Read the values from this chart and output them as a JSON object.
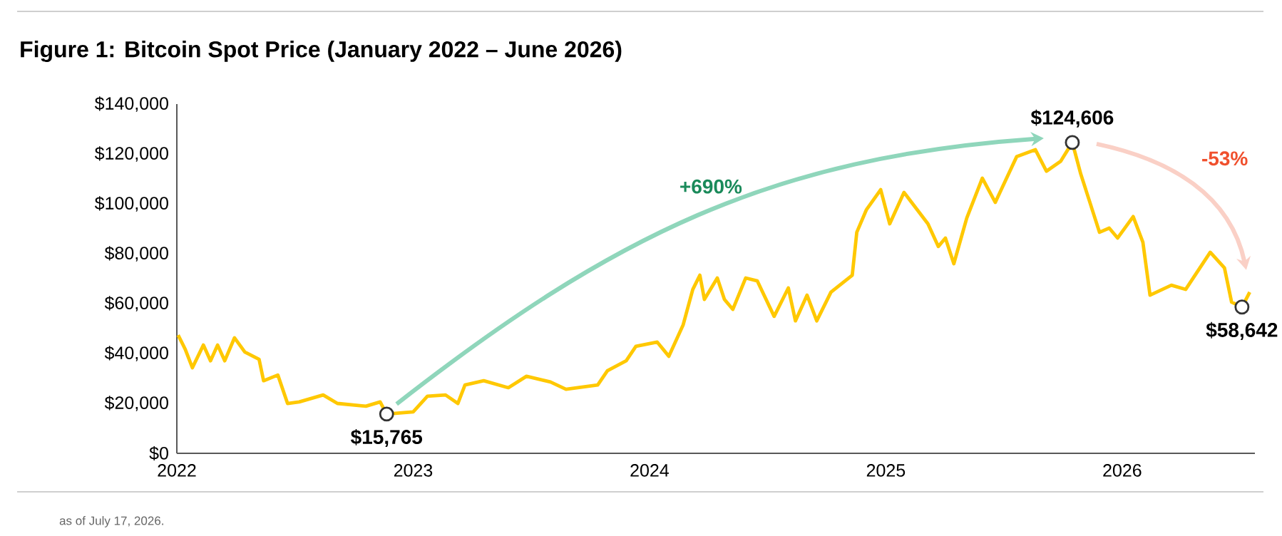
{
  "chart_data": {
    "type": "line",
    "title": "Figure 1: Bitcoin Spot Price (January 2022 – June 2026)",
    "color": "#ffc800",
    "x": [
      "2022-01-03",
      "2022-01-14",
      "2022-01-25",
      "2022-02-11",
      "2022-02-22",
      "2022-03-05",
      "2022-03-16",
      "2022-03-31",
      "2022-04-16",
      "2022-05-08",
      "2022-05-15",
      "2022-06-06",
      "2022-06-21",
      "2022-07-09",
      "2022-08-15",
      "2022-09-06",
      "2022-10-20",
      "2022-11-11",
      "2022-11-21",
      "2023-01-01",
      "2023-01-23",
      "2023-02-20",
      "2023-03-11",
      "2023-03-22",
      "2023-04-20",
      "2023-05-28",
      "2023-06-25",
      "2023-08-01",
      "2023-08-25",
      "2023-10-13",
      "2023-10-28",
      "2023-11-26",
      "2023-12-11",
      "2024-01-13",
      "2024-01-31",
      "2024-02-22",
      "2024-03-08",
      "2024-03-19",
      "2024-03-26",
      "2024-04-15",
      "2024-04-26",
      "2024-05-09",
      "2024-05-29",
      "2024-06-16",
      "2024-07-12",
      "2024-08-03",
      "2024-08-14",
      "2024-09-01",
      "2024-09-16",
      "2024-10-08",
      "2024-11-10",
      "2024-11-17",
      "2024-12-02",
      "2024-12-24",
      "2025-01-07",
      "2025-01-29",
      "2025-03-07",
      "2025-03-23",
      "2025-04-03",
      "2025-04-16",
      "2025-05-06",
      "2025-05-30",
      "2025-06-19",
      "2025-07-22",
      "2025-08-20",
      "2025-09-06",
      "2025-09-28",
      "2025-10-16",
      "2025-10-29",
      "2025-11-27",
      "2025-12-12",
      "2025-12-25",
      "2026-01-18",
      "2026-02-02",
      "2026-02-13",
      "2026-03-18",
      "2026-04-09",
      "2026-05-17",
      "2026-06-08",
      "2026-06-19",
      "2026-07-05",
      "2026-07-17"
    ],
    "values": [
      47400,
      41700,
      34300,
      43400,
      37100,
      43400,
      37100,
      46300,
      40600,
      37700,
      29100,
      31400,
      20000,
      20600,
      23400,
      20000,
      18900,
      20600,
      15765,
      16600,
      22900,
      23400,
      20000,
      27400,
      29100,
      26300,
      30900,
      28600,
      25700,
      27400,
      33100,
      37100,
      42900,
      44600,
      38900,
      51400,
      65700,
      71400,
      61700,
      70300,
      61700,
      57700,
      70300,
      69100,
      54900,
      66300,
      53100,
      63400,
      53100,
      64600,
      71400,
      88600,
      97700,
      105700,
      92000,
      104600,
      92000,
      82900,
      86300,
      76000,
      94300,
      110300,
      100600,
      118900,
      121700,
      113100,
      117100,
      124606,
      112000,
      88600,
      90300,
      86300,
      94900,
      84600,
      63400,
      67400,
      65700,
      80600,
      74300,
      60600,
      58642,
      64600
    ],
    "xlim": [
      "2022-01-01",
      "2026-07-25"
    ],
    "xticks": [
      "2022",
      "2023",
      "2024",
      "2025",
      "2026"
    ],
    "ylim": [
      0,
      140000
    ],
    "yticks": [
      {
        "value": 0,
        "label": "$0"
      },
      {
        "value": 20000,
        "label": "$20,000"
      },
      {
        "value": 40000,
        "label": "$40,000"
      },
      {
        "value": 60000,
        "label": "$60,000"
      },
      {
        "value": 80000,
        "label": "$80,000"
      },
      {
        "value": 100000,
        "label": "$100,000"
      },
      {
        "value": 120000,
        "label": "$120,000"
      },
      {
        "value": 140000,
        "label": "$140,000"
      }
    ],
    "annotations": [
      {
        "text": "$15,765",
        "x": "2022-11-21",
        "y": 15765
      },
      {
        "text": "$124,606",
        "x": "2025-10-16",
        "y": 124606
      },
      {
        "text": "$58,642",
        "x": "2026-07-05",
        "y": 58642
      },
      "+690%",
      "-53%",
      "as of July 17, 2026."
    ]
  }
}
